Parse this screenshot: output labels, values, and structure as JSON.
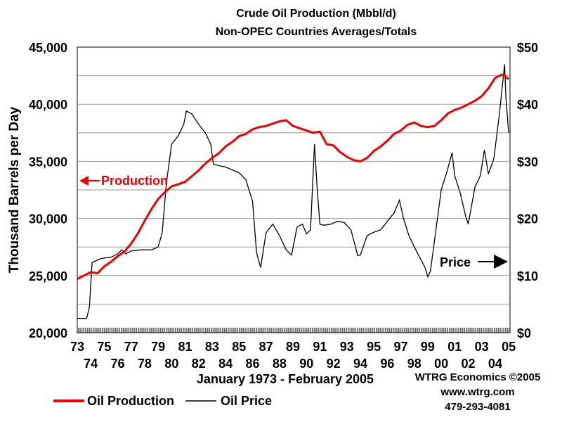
{
  "chart_data": {
    "type": "line",
    "title": "Crude Oil Production (Mbbl/d)",
    "subtitle": "Non-OPEC Countries Averages/Totals",
    "ylabel": "Thousand Barrels per Day",
    "xlabel": "January 1973 - February 2005",
    "ylim": [
      20000,
      45000
    ],
    "y2lim": [
      0,
      50
    ],
    "xlim": [
      1973.0,
      2005.1
    ],
    "y_ticks": [
      "20,000",
      "25,000",
      "30,000",
      "35,000",
      "40,000",
      "45,000"
    ],
    "y2_ticks": [
      "$0",
      "$10",
      "$20",
      "$30",
      "$40",
      "$50"
    ],
    "x_ticks_top": [
      "73",
      "75",
      "77",
      "79",
      "81",
      "83",
      "85",
      "87",
      "89",
      "91",
      "93",
      "95",
      "97",
      "99",
      "01",
      "03",
      "05"
    ],
    "x_ticks_bottom": [
      "74",
      "76",
      "78",
      "80",
      "82",
      "84",
      "86",
      "88",
      "90",
      "92",
      "94",
      "96",
      "98",
      "00",
      "02",
      "04"
    ],
    "grid": true,
    "legend_position": "bottom-left",
    "annotations": [
      {
        "text": "Production",
        "x": 1974.8,
        "y": 33300
      },
      {
        "text": "Price",
        "x": 2002.0,
        "y": 12.3
      }
    ],
    "series": [
      {
        "name": "Oil Production",
        "axis": "left",
        "color": "#ee0000",
        "x": [
          1973.0,
          1973.5,
          1974.0,
          1974.5,
          1975.0,
          1975.5,
          1976.0,
          1976.5,
          1977.0,
          1977.5,
          1978.0,
          1978.5,
          1979.0,
          1979.5,
          1980.0,
          1980.5,
          1981.0,
          1981.5,
          1982.0,
          1982.5,
          1983.0,
          1983.5,
          1984.0,
          1984.5,
          1985.0,
          1985.5,
          1986.0,
          1986.5,
          1987.0,
          1987.5,
          1988.0,
          1988.5,
          1989.0,
          1989.5,
          1990.0,
          1990.5,
          1991.0,
          1991.5,
          1992.0,
          1992.5,
          1993.0,
          1993.5,
          1994.0,
          1994.5,
          1995.0,
          1995.5,
          1996.0,
          1996.5,
          1997.0,
          1997.5,
          1998.0,
          1998.5,
          1999.0,
          1999.5,
          2000.0,
          2000.5,
          2001.0,
          2001.5,
          2002.0,
          2002.5,
          2003.0,
          2003.5,
          2004.0,
          2004.5,
          2005.0
        ],
        "values": [
          24700,
          25000,
          25300,
          25200,
          25800,
          26200,
          26700,
          27100,
          27800,
          28700,
          29800,
          30800,
          31700,
          32300,
          32800,
          33000,
          33200,
          33700,
          34200,
          34800,
          35300,
          35700,
          36300,
          36700,
          37200,
          37400,
          37800,
          38000,
          38100,
          38300,
          38500,
          38600,
          38100,
          37900,
          37700,
          37500,
          37600,
          36500,
          36400,
          35800,
          35400,
          35100,
          35000,
          35300,
          35900,
          36300,
          36800,
          37400,
          37700,
          38200,
          38400,
          38100,
          38000,
          38100,
          38600,
          39200,
          39500,
          39700,
          40000,
          40300,
          40700,
          41400,
          42300,
          42600,
          42200
        ]
      },
      {
        "name": "Oil Price",
        "axis": "right",
        "color": "#000000",
        "x": [
          1973.0,
          1973.7,
          1973.9,
          1974.1,
          1974.8,
          1975.5,
          1976.0,
          1976.3,
          1976.6,
          1977.0,
          1977.7,
          1978.5,
          1979.0,
          1979.3,
          1979.6,
          1980.0,
          1980.5,
          1980.9,
          1981.1,
          1981.5,
          1982.0,
          1982.5,
          1982.9,
          1983.1,
          1983.6,
          1984.0,
          1984.6,
          1985.0,
          1985.5,
          1986.0,
          1986.3,
          1986.6,
          1987.0,
          1987.5,
          1988.0,
          1988.5,
          1988.9,
          1989.3,
          1989.7,
          1990.0,
          1990.3,
          1990.6,
          1990.8,
          1991.0,
          1991.3,
          1991.8,
          1992.3,
          1992.8,
          1993.3,
          1993.8,
          1994.0,
          1994.5,
          1995.0,
          1995.5,
          1996.0,
          1996.5,
          1996.9,
          1997.2,
          1997.6,
          1998.0,
          1998.4,
          1998.8,
          1999.0,
          1999.2,
          1999.6,
          2000.0,
          2000.4,
          2000.8,
          2001.0,
          2001.4,
          2001.8,
          2002.0,
          2002.5,
          2002.9,
          2003.2,
          2003.5,
          2003.9,
          2004.3,
          2004.7,
          2004.8,
          2005.0
        ],
        "values": [
          2.5,
          2.5,
          4.5,
          12.3,
          13.0,
          13.2,
          13.8,
          14.5,
          13.8,
          14.3,
          14.5,
          14.5,
          15.0,
          17.5,
          26.0,
          33.0,
          34.5,
          36.5,
          38.8,
          38.3,
          36.5,
          35.0,
          33.0,
          29.5,
          29.2,
          29.0,
          28.4,
          28.0,
          26.8,
          23.0,
          14.0,
          11.4,
          17.5,
          19.0,
          17.0,
          14.5,
          13.6,
          18.5,
          19.0,
          17.3,
          18.0,
          33.0,
          25.0,
          19.0,
          18.8,
          19.0,
          19.5,
          19.3,
          18.0,
          13.5,
          13.6,
          17.0,
          17.6,
          18.0,
          19.5,
          21.0,
          23.2,
          20.0,
          17.0,
          15.0,
          13.2,
          11.4,
          9.8,
          10.8,
          18.0,
          25.0,
          28.0,
          31.5,
          27.5,
          24.5,
          20.5,
          19.0,
          25.5,
          27.5,
          32.0,
          27.8,
          30.5,
          38.0,
          47.0,
          41.0,
          35.0
        ]
      }
    ]
  },
  "credits": {
    "company": "WTRG Economics  ©2005",
    "url": "www.wtrg.com",
    "phone": "479-293-4081"
  }
}
